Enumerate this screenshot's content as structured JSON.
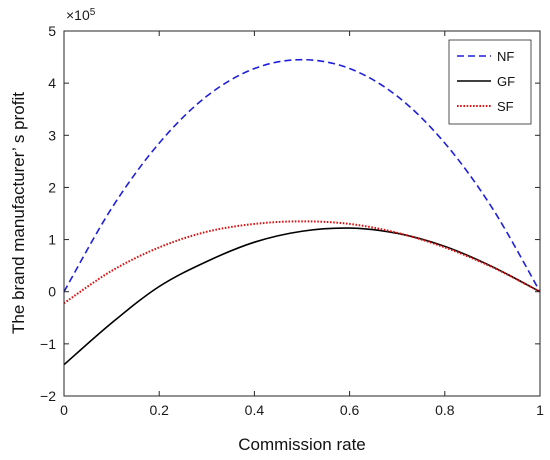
{
  "chart_data": {
    "type": "line",
    "title": "",
    "xlabel": "Commission rate",
    "ylabel": "The brand manufacturer’ s profit",
    "xlim": [
      0,
      1
    ],
    "ylim": [
      -2,
      5
    ],
    "y_exponent": "×10",
    "y_exponent_power": "5",
    "x_ticks": [
      "0",
      "0.2",
      "0.4",
      "0.6",
      "0.8",
      "1"
    ],
    "y_ticks": [
      "−2",
      "−1",
      "0",
      "1",
      "2",
      "3",
      "4",
      "5"
    ],
    "grid": false,
    "legend_position": "top-right",
    "series": [
      {
        "name": "NF",
        "color": "#1f1fdd",
        "style": "dashed",
        "x": [
          0,
          0.1,
          0.2,
          0.3,
          0.4,
          0.5,
          0.6,
          0.7,
          0.8,
          0.9,
          1.0
        ],
        "y": [
          0,
          1.6,
          2.85,
          3.75,
          4.28,
          4.45,
          4.28,
          3.75,
          2.85,
          1.6,
          0
        ]
      },
      {
        "name": "GF",
        "color": "#000000",
        "style": "solid",
        "x": [
          0,
          0.1,
          0.2,
          0.3,
          0.4,
          0.5,
          0.6,
          0.7,
          0.8,
          0.9,
          1.0
        ],
        "y": [
          -1.4,
          -0.6,
          0.1,
          0.58,
          0.95,
          1.16,
          1.22,
          1.12,
          0.87,
          0.48,
          0
        ]
      },
      {
        "name": "SF",
        "color": "#dd1111",
        "style": "dotted",
        "x": [
          0,
          0.1,
          0.2,
          0.3,
          0.4,
          0.5,
          0.6,
          0.7,
          0.8,
          0.9,
          1.0
        ],
        "y": [
          -0.22,
          0.4,
          0.85,
          1.15,
          1.3,
          1.35,
          1.3,
          1.13,
          0.85,
          0.47,
          0
        ]
      }
    ]
  }
}
